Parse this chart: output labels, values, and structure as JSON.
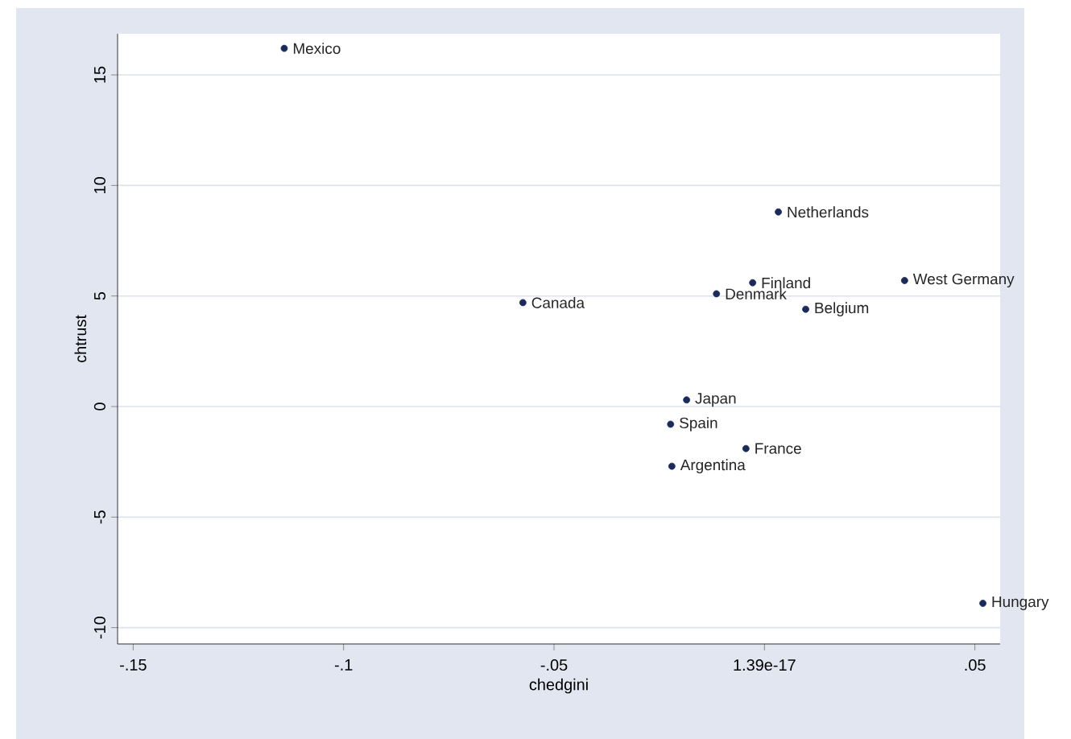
{
  "chart_data": {
    "type": "scatter",
    "xlabel": "chedgini",
    "ylabel": "chtrust",
    "series": [
      {
        "color": "#1a2a5a",
        "x": [
          -0.1141,
          -0.0574,
          -0.0114,
          -0.0028,
          0.0033,
          0.0098,
          0.0333,
          -0.0185,
          -0.0223,
          -0.0044,
          -0.022,
          0.0519
        ],
        "values": [
          16.2,
          4.7,
          5.1,
          5.6,
          8.8,
          4.4,
          5.7,
          0.3,
          -0.8,
          -1.9,
          -2.7,
          -8.9
        ]
      }
    ],
    "annotations": [
      {
        "text": "Mexico",
        "x": -0.1141,
        "y": 16.2
      },
      {
        "text": "Canada",
        "x": -0.0574,
        "y": 4.7
      },
      {
        "text": "Denmark",
        "x": -0.0114,
        "y": 5.1
      },
      {
        "text": "Finland",
        "x": -0.0028,
        "y": 5.6
      },
      {
        "text": "Netherlands",
        "x": 0.0033,
        "y": 8.8
      },
      {
        "text": "Belgium",
        "x": 0.0098,
        "y": 4.4
      },
      {
        "text": "West Germany",
        "x": 0.0333,
        "y": 5.7
      },
      {
        "text": "Japan",
        "x": -0.0185,
        "y": 0.3
      },
      {
        "text": "Spain",
        "x": -0.0223,
        "y": -0.8
      },
      {
        "text": "France",
        "x": -0.0044,
        "y": -1.9
      },
      {
        "text": "Argentina",
        "x": -0.022,
        "y": -2.7
      },
      {
        "text": "Hungary",
        "x": 0.0519,
        "y": -8.9
      }
    ],
    "xlim": [
      -0.1537,
      0.056
    ],
    "ylim": [
      -10.74,
      16.86
    ],
    "xticks": [
      {
        "value": -0.15,
        "label": "-.15"
      },
      {
        "value": -0.1,
        "label": "-.1"
      },
      {
        "value": -0.05,
        "label": "-.05"
      },
      {
        "value": 0,
        "label": "1.39e-17"
      },
      {
        "value": 0.05,
        "label": ".05"
      }
    ],
    "yticks": [
      15,
      10,
      5,
      0,
      -5,
      -10
    ],
    "grid": "y",
    "marker": "circle"
  }
}
